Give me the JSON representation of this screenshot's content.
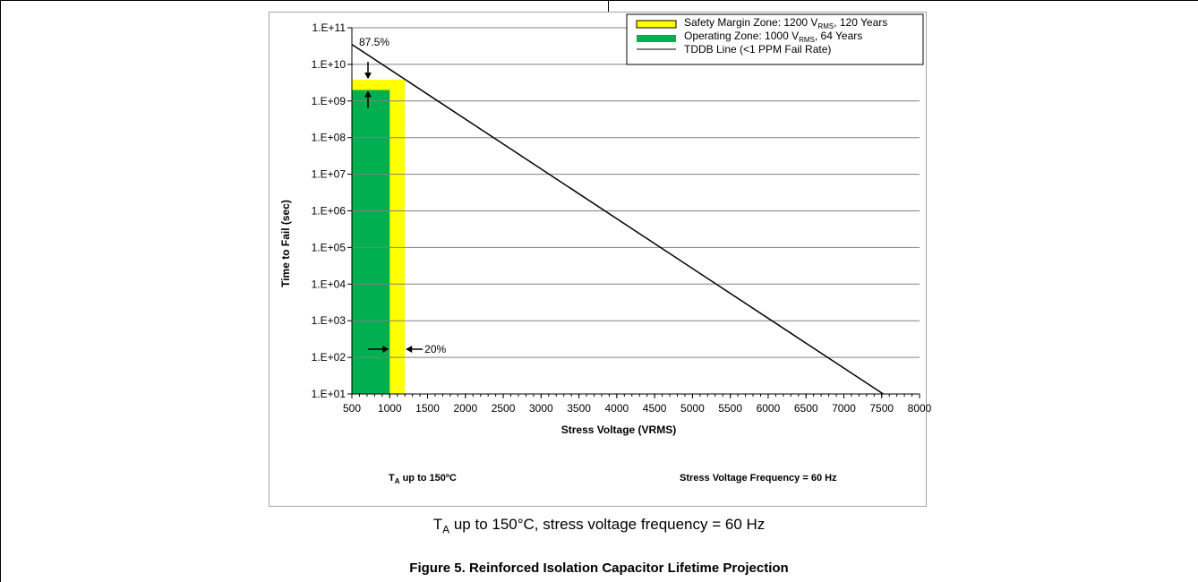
{
  "caption": {
    "subscript_symbol": "T",
    "subscript": "A",
    "text": " up to 150°C, stress voltage frequency = 60 Hz"
  },
  "figure_title": "Figure 5. Reinforced Isolation Capacitor Lifetime Projection",
  "colors": {
    "safety": "#ffff00",
    "operating": "#00b050",
    "grid": "#808080",
    "line": "#000000"
  },
  "chart_data": {
    "type": "line",
    "xlabel": "Stress Voltage (VRMS)",
    "ylabel": "Time to Fail (sec)",
    "xlim": [
      500,
      8000
    ],
    "ylim_log10": [
      1,
      11
    ],
    "y_scale": "log",
    "x_ticks": [
      "500",
      "1000",
      "1500",
      "2000",
      "2500",
      "3000",
      "3500",
      "4000",
      "4500",
      "5000",
      "5500",
      "6000",
      "6500",
      "7000",
      "7500",
      "8000"
    ],
    "y_ticks": [
      "1.E+01",
      "1.E+02",
      "1.E+03",
      "1.E+04",
      "1.E+05",
      "1.E+06",
      "1.E+07",
      "1.E+08",
      "1.E+09",
      "1.E+10",
      "1.E+11"
    ],
    "grid": "horizontal",
    "legend_position": "top-right",
    "legend": [
      {
        "main": "Safety Margin Zone:  1200 V",
        "sub": "RMS",
        "tail": ", 120 Years"
      },
      {
        "main": "Operating Zone:  1000 V",
        "sub": "RMS",
        "tail": ", 64 Years"
      },
      {
        "main": "TDDB Line (<1 PPM Fail Rate)",
        "sub": "",
        "tail": ""
      }
    ],
    "zones": [
      {
        "name": "Safety Margin Zone",
        "x_start": 500,
        "x_end": 1200,
        "y_top": 3800000000.0
      },
      {
        "name": "Operating Zone",
        "x_start": 500,
        "x_end": 1000,
        "y_top": 2000000000.0
      }
    ],
    "series": [
      {
        "name": "TDDB Line (<1 PPM Fail Rate)",
        "x": [
          500,
          7520
        ],
        "y": [
          35000000000.0,
          10.0
        ]
      }
    ],
    "annotations": {
      "top_percent": "87.5%",
      "side_percent": "20%",
      "note_left_symbol": "T",
      "note_left_sub": "A",
      "note_left_rest": "  up to 150ºC",
      "note_right": "Stress Voltage Frequency  =  60 Hz"
    }
  }
}
